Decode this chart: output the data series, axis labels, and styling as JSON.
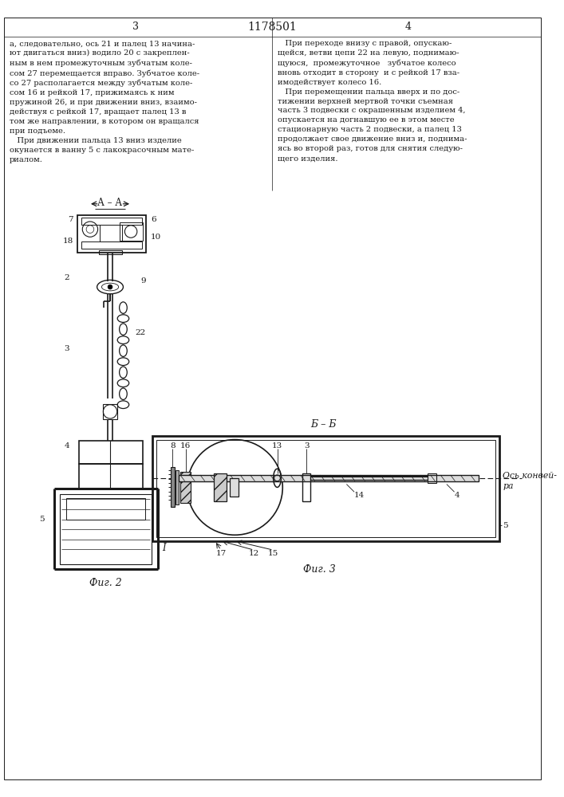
{
  "bg_color": "#ffffff",
  "lc": "#1a1a1a",
  "tc": "#1a1a1a",
  "title": "1178501",
  "page_num_left": "3",
  "page_num_right": "4",
  "left_text": "а, следовательно, ось 21 и палец 13 начина-\nют двигаться вниз) водило 20 с закреплен-\nным в нем промежуточным зубчатым коле-\nсом 27 перемещается вправо. Зубчатое коле-\nсо 27 располагается между зубчатым коле-\nсом 16 и рейкой 17, прижимаясь к ним\nпружиной 26, и при движении вниз, взаимо-\nдействуя с рейкой 17, вращает палец 13 в\nтом же направлении, в котором он вращался\nпри подъеме.\n   При движении пальца 13 вниз изделие\nокунается в ванну 5 с лакокрасочным мате-\nриалом.",
  "right_text": "   При переходе внизу с правой, опускаю-\nщейся, ветви цепи 22 на левую, поднимаю-\nщуюся,  промежуточное   зубчатое колесо\nвновь отходит в сторону  и с рейкой 17 вза-\nимодействует колесо 16.\n   При перемещении пальца вверх и по дос-\nтижении верхней мертвой точки съемная\nчасть 3 подвески с окрашенным изделием 4,\nопускается на догнавшую ее в этом месте\nстационарную часть 2 подвески, а палец 13\nпродолжает свое движение вниз и, поднима-\nясь во второй раз, готов для снятия следую-\nщего изделия.",
  "fig2_caption": "Фиг. 2",
  "fig3_caption": "Фиг. 3",
  "aa_label": "А – А",
  "bb_label": "Б – Б",
  "conveyor_label": "Ось конвей-\nра",
  "label_I": "I"
}
